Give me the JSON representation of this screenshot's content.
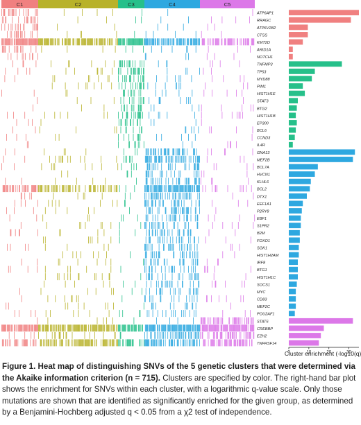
{
  "chart_data": {
    "type": "heatmap",
    "clusters": [
      {
        "name": "C1",
        "color": "#F08080"
      },
      {
        "name": "C2",
        "color": "#B8B22A"
      },
      {
        "name": "C3",
        "color": "#26C08A"
      },
      {
        "name": "C4",
        "color": "#2EA8E0"
      },
      {
        "name": "C5",
        "color": "#DC78E8"
      }
    ],
    "rows": [
      {
        "gene": "ATP6AP1",
        "cluster": "C1",
        "enrichment": 35,
        "density": [
          0.3,
          0.03,
          0.02,
          0.02,
          0.02
        ]
      },
      {
        "gene": "RRAGC",
        "cluster": "C1",
        "enrichment": 31,
        "density": [
          0.3,
          0.03,
          0.02,
          0.02,
          0.02
        ]
      },
      {
        "gene": "ATP6V1B2",
        "cluster": "C1",
        "enrichment": 9.5,
        "density": [
          0.25,
          0.03,
          0.02,
          0.02,
          0.03
        ]
      },
      {
        "gene": "CTSS",
        "cluster": "C1",
        "enrichment": 9.5,
        "density": [
          0.25,
          0.03,
          0.02,
          0.02,
          0.03
        ]
      },
      {
        "gene": "KMT2D",
        "cluster": "C1",
        "enrichment": 7,
        "density": [
          0.9,
          0.72,
          0.85,
          0.65,
          0.55
        ]
      },
      {
        "gene": "ARID1A",
        "cluster": "C1",
        "enrichment": 2,
        "density": [
          0.2,
          0.05,
          0.05,
          0.08,
          0.08
        ]
      },
      {
        "gene": "NOTCH1",
        "cluster": "C1",
        "enrichment": 2,
        "density": [
          0.15,
          0.02,
          0.02,
          0.02,
          0.02
        ]
      },
      {
        "gene": "TNFAIP3",
        "cluster": "C3",
        "enrichment": 26.5,
        "density": [
          0.03,
          0.05,
          0.4,
          0.05,
          0.05
        ]
      },
      {
        "gene": "TP53",
        "cluster": "C3",
        "enrichment": 13,
        "density": [
          0.05,
          0.05,
          0.38,
          0.05,
          0.05
        ]
      },
      {
        "gene": "MYD88",
        "cluster": "C3",
        "enrichment": 11.5,
        "density": [
          0.03,
          0.04,
          0.35,
          0.06,
          0.04
        ]
      },
      {
        "gene": "PIM1",
        "cluster": "C3",
        "enrichment": 7,
        "density": [
          0.03,
          0.04,
          0.3,
          0.08,
          0.04
        ]
      },
      {
        "gene": "HIST1H1E",
        "cluster": "C3",
        "enrichment": 8,
        "density": [
          0.03,
          0.04,
          0.3,
          0.06,
          0.04
        ]
      },
      {
        "gene": "STAT3",
        "cluster": "C3",
        "enrichment": 4.5,
        "density": [
          0.02,
          0.03,
          0.25,
          0.04,
          0.03
        ]
      },
      {
        "gene": "BTG2",
        "cluster": "C3",
        "enrichment": 4,
        "density": [
          0.02,
          0.03,
          0.25,
          0.05,
          0.04
        ]
      },
      {
        "gene": "HIST1H1B",
        "cluster": "C3",
        "enrichment": 3.5,
        "density": [
          0.02,
          0.03,
          0.22,
          0.04,
          0.03
        ]
      },
      {
        "gene": "EP300",
        "cluster": "C3",
        "enrichment": 4,
        "density": [
          0.04,
          0.03,
          0.25,
          0.04,
          0.03
        ]
      },
      {
        "gene": "BCL6",
        "cluster": "C3",
        "enrichment": 3.5,
        "density": [
          0.03,
          0.03,
          0.2,
          0.04,
          0.03
        ]
      },
      {
        "gene": "CCND3",
        "cluster": "C3",
        "enrichment": 3,
        "density": [
          0.02,
          0.02,
          0.18,
          0.03,
          0.02
        ]
      },
      {
        "gene": "IL4R",
        "cluster": "C3",
        "enrichment": 2,
        "density": [
          0.02,
          0.02,
          0.15,
          0.02,
          0.02
        ]
      },
      {
        "gene": "GNA13",
        "cluster": "C4",
        "enrichment": 33,
        "density": [
          0.04,
          0.06,
          0.05,
          0.42,
          0.04
        ]
      },
      {
        "gene": "MEF2B",
        "cluster": "C4",
        "enrichment": 32,
        "density": [
          0.04,
          0.06,
          0.05,
          0.4,
          0.04
        ]
      },
      {
        "gene": "BCL7A",
        "cluster": "C4",
        "enrichment": 14.5,
        "density": [
          0.04,
          0.06,
          0.04,
          0.35,
          0.04
        ]
      },
      {
        "gene": "HVCN1",
        "cluster": "C4",
        "enrichment": 13,
        "density": [
          0.04,
          0.05,
          0.04,
          0.33,
          0.04
        ]
      },
      {
        "gene": "KLHL6",
        "cluster": "C4",
        "enrichment": 11,
        "density": [
          0.05,
          0.06,
          0.04,
          0.33,
          0.05
        ]
      },
      {
        "gene": "BCL2",
        "cluster": "C4",
        "enrichment": 10.5,
        "density": [
          0.45,
          0.4,
          0.12,
          0.7,
          0.1
        ]
      },
      {
        "gene": "DTX1",
        "cluster": "C4",
        "enrichment": 9,
        "density": [
          0.04,
          0.05,
          0.04,
          0.3,
          0.04
        ]
      },
      {
        "gene": "EEF1A1",
        "cluster": "C4",
        "enrichment": 7,
        "density": [
          0.04,
          0.05,
          0.04,
          0.28,
          0.04
        ]
      },
      {
        "gene": "P2RY8",
        "cluster": "C4",
        "enrichment": 6.5,
        "density": [
          0.03,
          0.05,
          0.04,
          0.27,
          0.04
        ]
      },
      {
        "gene": "EBF1",
        "cluster": "C4",
        "enrichment": 6,
        "density": [
          0.03,
          0.05,
          0.04,
          0.26,
          0.04
        ]
      },
      {
        "gene": "S1PR2",
        "cluster": "C4",
        "enrichment": 6,
        "density": [
          0.03,
          0.05,
          0.04,
          0.26,
          0.04
        ]
      },
      {
        "gene": "B2M",
        "cluster": "C4",
        "enrichment": 5.5,
        "density": [
          0.04,
          0.06,
          0.05,
          0.25,
          0.04
        ]
      },
      {
        "gene": "FOXO1",
        "cluster": "C4",
        "enrichment": 5.5,
        "density": [
          0.03,
          0.05,
          0.04,
          0.24,
          0.04
        ]
      },
      {
        "gene": "SGK1",
        "cluster": "C4",
        "enrichment": 5,
        "density": [
          0.03,
          0.05,
          0.04,
          0.24,
          0.04
        ]
      },
      {
        "gene": "HIST1H2AM",
        "cluster": "C4",
        "enrichment": 5,
        "density": [
          0.03,
          0.05,
          0.04,
          0.22,
          0.04
        ]
      },
      {
        "gene": "IRF8",
        "cluster": "C4",
        "enrichment": 4.5,
        "density": [
          0.03,
          0.05,
          0.04,
          0.22,
          0.04
        ]
      },
      {
        "gene": "BTG1",
        "cluster": "C4",
        "enrichment": 4.5,
        "density": [
          0.03,
          0.05,
          0.04,
          0.22,
          0.04
        ]
      },
      {
        "gene": "HIST1H1C",
        "cluster": "C4",
        "enrichment": 4.5,
        "density": [
          0.03,
          0.05,
          0.04,
          0.22,
          0.04
        ]
      },
      {
        "gene": "SOCS1",
        "cluster": "C4",
        "enrichment": 4,
        "density": [
          0.03,
          0.05,
          0.04,
          0.2,
          0.04
        ]
      },
      {
        "gene": "MYC",
        "cluster": "C4",
        "enrichment": 3.5,
        "density": [
          0.03,
          0.05,
          0.04,
          0.18,
          0.04
        ]
      },
      {
        "gene": "CD83",
        "cluster": "C4",
        "enrichment": 3.5,
        "density": [
          0.03,
          0.04,
          0.03,
          0.18,
          0.03
        ]
      },
      {
        "gene": "MEF2C",
        "cluster": "C4",
        "enrichment": 3.5,
        "density": [
          0.03,
          0.04,
          0.03,
          0.16,
          0.03
        ]
      },
      {
        "gene": "POU2AF1",
        "cluster": "C4",
        "enrichment": 3,
        "density": [
          0.03,
          0.04,
          0.03,
          0.15,
          0.03
        ]
      },
      {
        "gene": "STAT6",
        "cluster": "C5",
        "enrichment": 32,
        "density": [
          0.05,
          0.05,
          0.05,
          0.08,
          0.55
        ]
      },
      {
        "gene": "CREBBP",
        "cluster": "C5",
        "enrichment": 17.5,
        "density": [
          0.85,
          0.75,
          0.7,
          0.8,
          0.8
        ]
      },
      {
        "gene": "EZH2",
        "cluster": "C5",
        "enrichment": 16,
        "density": [
          0.1,
          0.15,
          0.1,
          0.45,
          0.5
        ]
      },
      {
        "gene": "TNFRSF14",
        "cluster": "C5",
        "enrichment": 15,
        "density": [
          0.5,
          0.6,
          0.35,
          0.45,
          0.6
        ]
      }
    ],
    "xlabel": "Cluster enrichment (-log10(q))",
    "xlim": [
      0,
      35
    ],
    "xticks": [
      0,
      10,
      20,
      30
    ]
  },
  "caption": {
    "bold": "Figure 1. Heat map of distinguishing SNVs of the 5 genetic clusters that were determined via the Akaike information criterion (n = 715).",
    "text": " Clusters are specified by color. The right-hand bar plot shows the enrichment for SNVs within each cluster, with a logarithmic q-value scale. Only those mutations are shown that are identified as significantly enriched for the given group, as determined by a Benjamini-Hochberg adjusted q < 0.05 from a χ2 test of independence."
  }
}
